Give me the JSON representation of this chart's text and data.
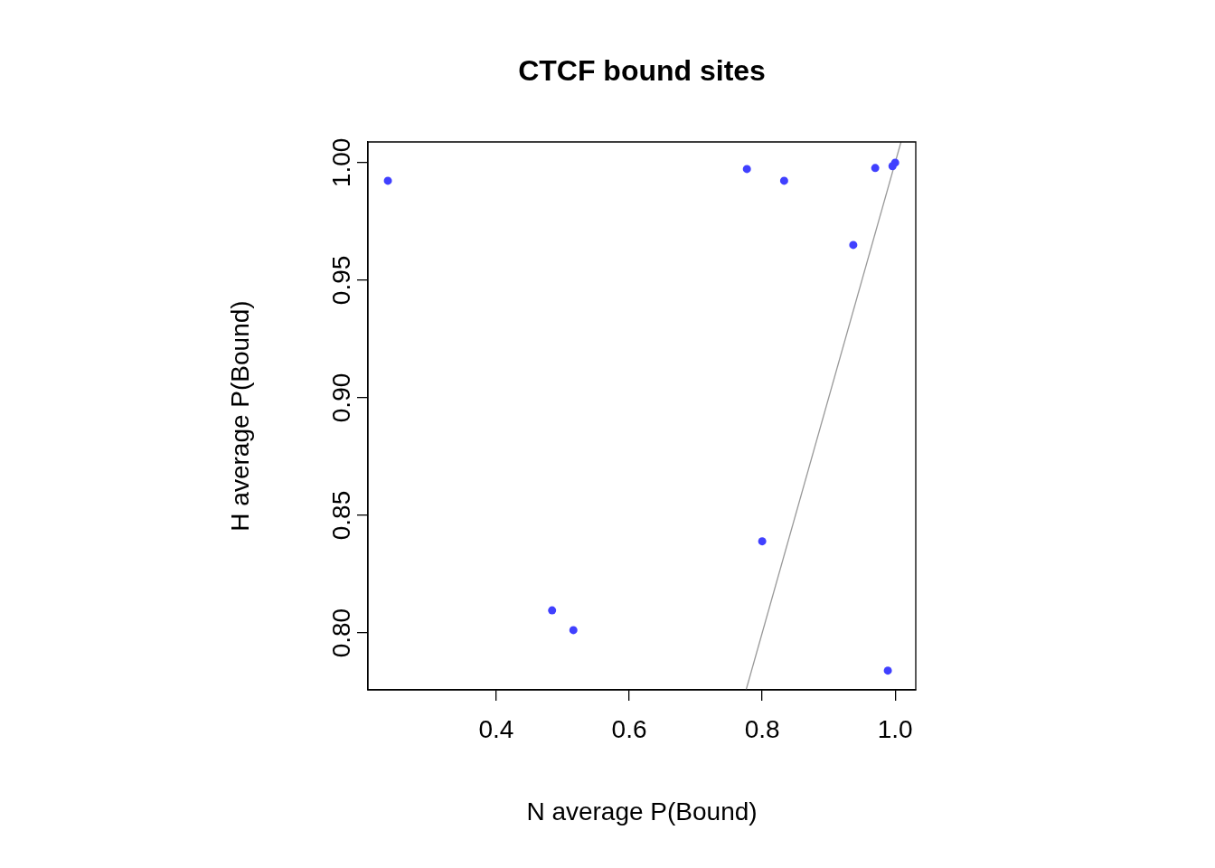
{
  "chart_data": {
    "type": "scatter",
    "title": "CTCF bound sites",
    "xlabel": "N average P(Bound)",
    "ylabel": "H average P(Bound)",
    "xlim": [
      0.207,
      1.031
    ],
    "ylim": [
      0.7758,
      1.0088
    ],
    "xticks": [
      0.4,
      0.6,
      0.8,
      {
        "value": 1.0,
        "label": "1.0"
      }
    ],
    "yticks": [
      {
        "value": 0.8,
        "label": "0.80"
      },
      0.85,
      {
        "value": 0.9,
        "label": "0.90"
      },
      0.95,
      {
        "value": 1.0,
        "label": "1.00"
      }
    ],
    "grid": false,
    "legend": false,
    "marker": "circle",
    "series": [
      {
        "color": "#4040ff",
        "x": [
          0.237,
          0.777,
          0.833,
          0.97,
          0.937,
          0.8,
          0.484,
          0.516,
          0.989,
          0.996,
          1.0
        ],
        "values": [
          0.9923,
          0.9973,
          0.9923,
          0.9977,
          0.965,
          0.839,
          0.8096,
          0.8012,
          0.784,
          0.9985,
          1.0
        ]
      },
      {
        "type": "line",
        "marker": "none",
        "color": "#999999",
        "x": [
          0.7758,
          1.0088
        ],
        "values": [
          0.7758,
          1.0088
        ]
      }
    ]
  }
}
